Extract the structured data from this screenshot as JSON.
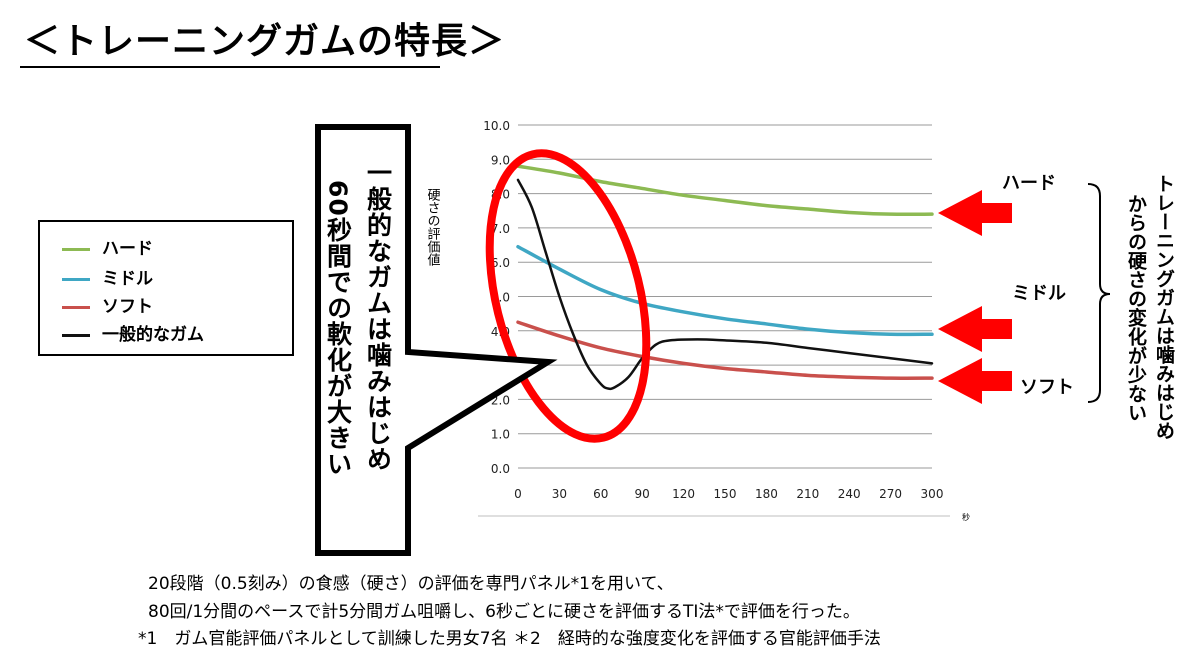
{
  "title": "＜トレーニングガムの特長＞",
  "legend": [
    {
      "name": "ハード",
      "color": "#8dba53"
    },
    {
      "name": "ミドル",
      "color": "#3fa7c4"
    },
    {
      "name": "ソフト",
      "color": "#c9504c"
    },
    {
      "name": "一般的なガム",
      "color": "#111111"
    }
  ],
  "callout": {
    "col1": "一般的なガムは噛みはじめ",
    "col2": "60秒間での軟化が大きい"
  },
  "right_labels": {
    "hard": "ハード",
    "middle": "ミドル",
    "soft": "ソフト"
  },
  "right_note": {
    "col1": "トレーニングガムは噛みはじめ",
    "col2": "からの硬さの変化が少ない"
  },
  "footnotes": [
    "20段階（0.5刻み）の食感（硬さ）の評価を専門パネル*1を用いて、",
    "80回/1分間のペースで計5分間ガム咀嚼し、6秒ごとに硬さを評価するTI法*で評価を行った。",
    "*1　ガム官能評価パネルとして訓練した男女7名 ＊2　経時的な強度変化を評価する官能評価手法"
  ],
  "chart_data": {
    "type": "line",
    "ylabel": "硬さの評価値",
    "xlabel": "秒",
    "xlim": [
      0,
      300
    ],
    "ylim": [
      0,
      10
    ],
    "xticks": [
      0,
      30,
      60,
      90,
      120,
      150,
      180,
      210,
      240,
      270,
      300
    ],
    "yticks": [
      "0.0",
      "1.0",
      "2.0",
      "3.0",
      "4.0",
      "5.0",
      "6.0",
      "7.0",
      "8.0",
      "9.0",
      "10.0"
    ],
    "grid": true,
    "series": [
      {
        "name": "ハード",
        "color": "#8dba53",
        "x": [
          0,
          30,
          60,
          90,
          120,
          150,
          180,
          210,
          240,
          270,
          300
        ],
        "y": [
          8.8,
          8.6,
          8.35,
          8.15,
          7.95,
          7.8,
          7.65,
          7.55,
          7.45,
          7.4,
          7.4
        ]
      },
      {
        "name": "ミドル",
        "color": "#3fa7c4",
        "x": [
          0,
          30,
          60,
          90,
          120,
          150,
          180,
          210,
          240,
          270,
          300
        ],
        "y": [
          6.45,
          5.8,
          5.2,
          4.8,
          4.55,
          4.35,
          4.2,
          4.05,
          3.95,
          3.9,
          3.9
        ]
      },
      {
        "name": "ソフト",
        "color": "#c9504c",
        "x": [
          0,
          30,
          60,
          90,
          120,
          150,
          180,
          210,
          240,
          270,
          300
        ],
        "y": [
          4.25,
          3.85,
          3.5,
          3.25,
          3.05,
          2.9,
          2.8,
          2.7,
          2.65,
          2.62,
          2.62
        ]
      },
      {
        "name": "一般的なガム",
        "color": "#111111",
        "x": [
          0,
          10,
          20,
          30,
          40,
          50,
          60,
          65,
          70,
          80,
          90,
          100,
          110,
          130,
          150,
          180,
          210,
          240,
          270,
          300
        ],
        "y": [
          8.4,
          7.6,
          6.3,
          5.0,
          3.9,
          3.0,
          2.45,
          2.32,
          2.35,
          2.65,
          3.2,
          3.6,
          3.72,
          3.75,
          3.72,
          3.65,
          3.5,
          3.35,
          3.2,
          3.05
        ]
      }
    ]
  }
}
